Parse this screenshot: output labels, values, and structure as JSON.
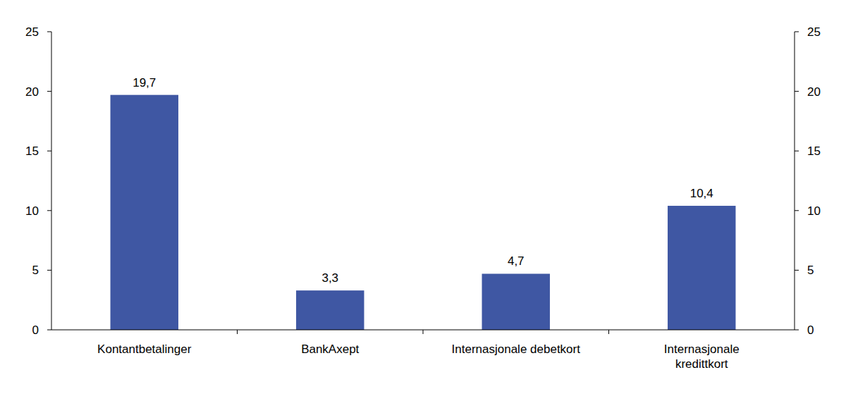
{
  "chart_data": {
    "type": "bar",
    "categories": [
      "Kontantbetalinger",
      "BankAxept",
      "Internasjonale debetkort",
      "Internasjonale\nkredittkort"
    ],
    "values": [
      19.7,
      3.3,
      4.7,
      10.4
    ],
    "value_labels": [
      "19,7",
      "3,3",
      "4,7",
      "10,4"
    ],
    "color": "#3f57a3",
    "ylim": [
      0,
      25
    ],
    "yticks": [
      0,
      5,
      10,
      15,
      20,
      25
    ],
    "y2lim": [
      0,
      25
    ],
    "y2ticks": [
      0,
      5,
      10,
      15,
      20,
      25
    ],
    "data_labels": true,
    "grid": false
  }
}
